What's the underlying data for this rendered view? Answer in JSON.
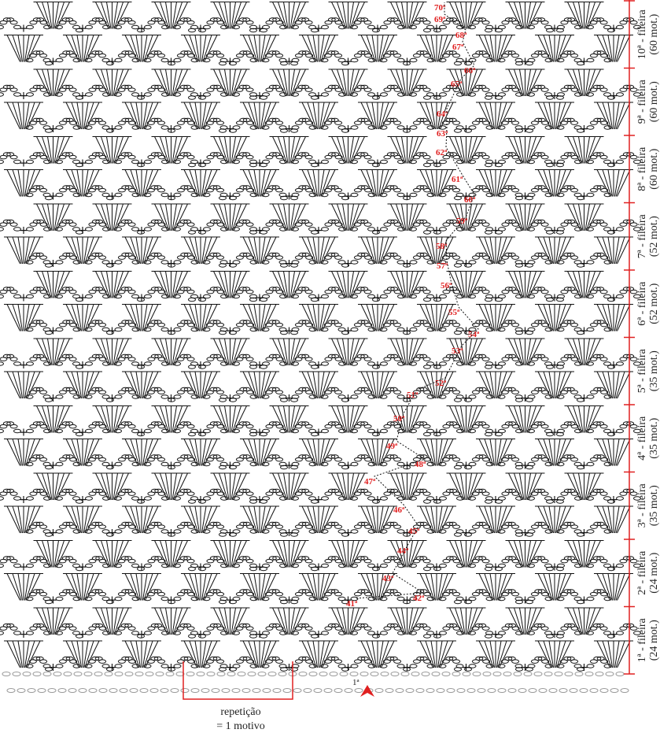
{
  "rows": [
    {
      "label": "1ª - fileira",
      "count": "(24 mot.)"
    },
    {
      "label": "2ª - fileira",
      "count": "(24 mot.)"
    },
    {
      "label": "3ª - fileira",
      "count": "(35 mot.)"
    },
    {
      "label": "4ª - fileira",
      "count": "(35 mot.)"
    },
    {
      "label": "5ª - fileira",
      "count": "(35 mot.)"
    },
    {
      "label": "6ª - fileira",
      "count": "(52 mot.)"
    },
    {
      "label": "7ª - fileira",
      "count": "(52 mot.)"
    },
    {
      "label": "8ª - fileira",
      "count": "(60 mot.)"
    },
    {
      "label": "9ª - fileira",
      "count": "(60 mot.)"
    },
    {
      "label": "10ª - fileira",
      "count": "(60 mot.)"
    }
  ],
  "rounds": [
    "41ª",
    "42ª",
    "43ª",
    "44ª",
    "45ª",
    "46ª",
    "47ª",
    "48ª",
    "49ª",
    "50ª",
    "51ª",
    "52ª",
    "53ª",
    "54ª",
    "55ª",
    "56ª",
    "57ª",
    "58ª",
    "59ª",
    "60ª",
    "61ª",
    "62ª",
    "63ª",
    "64ª",
    "65ª",
    "66ª",
    "67ª",
    "68ª",
    "69ª",
    "70ª"
  ],
  "start_label": "1ª",
  "repeat": {
    "label": "repetição",
    "sublabel": "= 1 motivo"
  }
}
